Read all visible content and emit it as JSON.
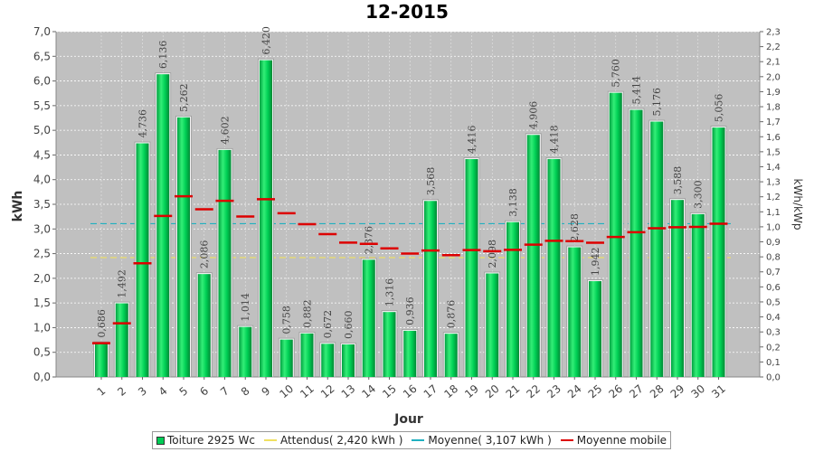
{
  "chart_data": {
    "type": "bar",
    "title": "12-2015",
    "xlabel": "Jour",
    "ylabel": "kWh",
    "y2label": "kWh/kWp",
    "ylim": [
      0,
      7.0
    ],
    "y2lim": [
      0,
      2.3
    ],
    "yticks": [
      "0,0",
      "0,5",
      "1,0",
      "1,5",
      "2,0",
      "2,5",
      "3,0",
      "3,5",
      "4,0",
      "4,5",
      "5,0",
      "5,5",
      "6,0",
      "6,5",
      "7,0"
    ],
    "y2ticks": [
      "0,0",
      "0,1",
      "0,2",
      "0,3",
      "0,4",
      "0,5",
      "0,6",
      "0,7",
      "0,8",
      "0,9",
      "1,0",
      "1,1",
      "1,2",
      "1,3",
      "1,4",
      "1,5",
      "1,6",
      "1,7",
      "1,8",
      "1,9",
      "2,0",
      "2,1",
      "2,2",
      "2,3"
    ],
    "categories": [
      "1",
      "2",
      "3",
      "4",
      "5",
      "6",
      "7",
      "8",
      "9",
      "10",
      "11",
      "12",
      "13",
      "14",
      "15",
      "16",
      "17",
      "18",
      "19",
      "20",
      "21",
      "22",
      "23",
      "24",
      "25",
      "26",
      "27",
      "28",
      "29",
      "30",
      "31"
    ],
    "grid": true,
    "legend_position": "bottom",
    "series": [
      {
        "name": "Toiture 2925 Wc",
        "kind": "bar",
        "color": "#00cc55",
        "values": [
          0.686,
          1.492,
          4.736,
          6.136,
          5.262,
          2.086,
          4.602,
          1.014,
          6.42,
          0.758,
          0.882,
          0.672,
          0.66,
          2.376,
          1.316,
          0.936,
          3.568,
          0.876,
          4.416,
          2.098,
          3.138,
          4.906,
          4.418,
          2.628,
          1.942,
          5.76,
          5.414,
          5.176,
          3.588,
          3.3,
          5.056
        ],
        "labels": [
          "0,686",
          "1,492",
          "4,736",
          "6,136",
          "5,262",
          "2,086",
          "4,602",
          "1,014",
          "6,420",
          "0,758",
          "0,882",
          "0,672",
          "0,660",
          "2,376",
          "1,316",
          "0,936",
          "3,568",
          "0,876",
          "4,416",
          "2,098",
          "3,138",
          "4,906",
          "4,418",
          "2,628",
          "1,942",
          "5,760",
          "5,414",
          "5,176",
          "3,588",
          "3,300",
          "5,056"
        ]
      },
      {
        "name": "Attendus( 2,420 kWh )",
        "kind": "hline-dashed",
        "color": "#f0e060",
        "value": 2.42
      },
      {
        "name": "Moyenne( 3,107 kWh )",
        "kind": "hline-dashed",
        "color": "#20b0c0",
        "value": 3.107
      },
      {
        "name": "Moyenne mobile",
        "kind": "marker-dash",
        "color": "#dd0000",
        "values": [
          0.686,
          1.089,
          2.305,
          3.263,
          3.663,
          3.4,
          3.572,
          3.252,
          3.604,
          3.319,
          3.097,
          2.895,
          2.723,
          2.698,
          2.606,
          2.502,
          2.564,
          2.47,
          2.573,
          2.549,
          2.577,
          2.683,
          2.759,
          2.754,
          2.722,
          2.839,
          2.934,
          3.014,
          3.034,
          3.042,
          3.107
        ]
      }
    ]
  }
}
